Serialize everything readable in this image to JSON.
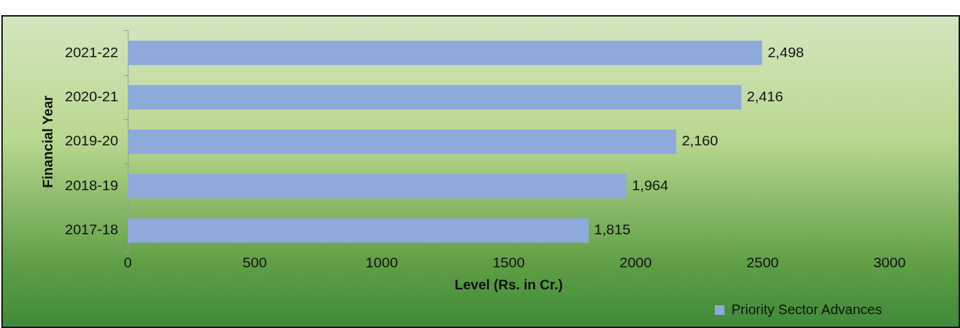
{
  "chart_data": {
    "type": "bar",
    "orientation": "horizontal",
    "xlabel": "Level (Rs. in Cr.)",
    "ylabel": "Financial Year",
    "categories": [
      "2021-22",
      "2020-21",
      "2019-20",
      "2018-19",
      "2017-18"
    ],
    "series": [
      {
        "name": "Priority Sector Advances",
        "color": "#8eaadb",
        "values": [
          2498,
          2416,
          2160,
          1964,
          1815
        ],
        "value_labels": [
          "2,498",
          "2,416",
          "2,160",
          "1,964",
          "1,815"
        ]
      }
    ],
    "xlim": [
      0,
      3000
    ],
    "xticks": [
      0,
      500,
      1000,
      1500,
      2000,
      2500,
      3000
    ],
    "grid": false,
    "legend": "bottom right"
  }
}
